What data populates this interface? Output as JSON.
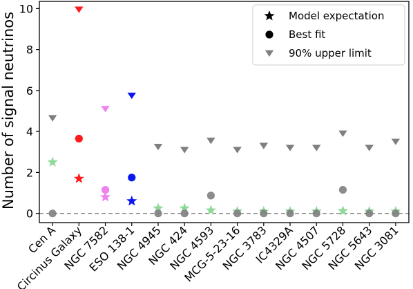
{
  "chart_data": {
    "type": "scatter",
    "title": "",
    "xlabel": "",
    "ylabel": "Number of signal neutrinos",
    "ylim": [
      -0.45,
      10.35
    ],
    "yticks": [
      0,
      2,
      4,
      6,
      8,
      10
    ],
    "grid": false,
    "legend_position": "top-right",
    "reference_line": {
      "y": 0,
      "style": "dashed",
      "color": "#888888"
    },
    "categories": [
      "Cen A",
      "Circinus Galaxy",
      "NGC 7582",
      "ESO 138-1",
      "NGC 4945",
      "NGC 424",
      "NGC 4593",
      "MCG-5-23-16",
      "NGC 3783",
      "IC4329A",
      "NGC 4507",
      "NGC 5728",
      "NGC 5643",
      "NGC 3081"
    ],
    "colors": [
      "#8fd99a",
      "#ff1a1a",
      "#ee82ee",
      "#0a18ee",
      "#8fd99a",
      "#8fd99a",
      "#8fd99a",
      "#8fd99a",
      "#8fd99a",
      "#8fd99a",
      "#8fd99a",
      "#8fd99a",
      "#8fd99a",
      "#8fd99a"
    ],
    "series": [
      {
        "name": "Model expectation",
        "marker": "star",
        "values": [
          2.5,
          1.7,
          0.8,
          0.6,
          0.25,
          0.25,
          0.15,
          0.1,
          0.1,
          0.1,
          0.1,
          0.12,
          0.1,
          0.1
        ]
      },
      {
        "name": "Best fit",
        "marker": "circle",
        "values": [
          0.0,
          3.65,
          1.15,
          1.75,
          0.0,
          0.0,
          0.87,
          0.0,
          0.0,
          0.0,
          0.0,
          1.15,
          0.0,
          0.0
        ],
        "colors": [
          "#7f7f7f",
          "#ff1a1a",
          "#ee82ee",
          "#0a18ee",
          "#7f7f7f",
          "#7f7f7f",
          "#7f7f7f",
          "#7f7f7f",
          "#7f7f7f",
          "#7f7f7f",
          "#7f7f7f",
          "#7f7f7f",
          "#7f7f7f",
          "#7f7f7f"
        ]
      },
      {
        "name": "90% upper limit",
        "marker": "triangle-down",
        "values": [
          4.65,
          9.95,
          5.1,
          5.75,
          3.25,
          3.1,
          3.55,
          3.1,
          3.3,
          3.2,
          3.2,
          3.9,
          3.2,
          3.5
        ],
        "colors": [
          "#7f7f7f",
          "#ff1a1a",
          "#ee82ee",
          "#0a18ee",
          "#7f7f7f",
          "#7f7f7f",
          "#7f7f7f",
          "#7f7f7f",
          "#7f7f7f",
          "#7f7f7f",
          "#7f7f7f",
          "#7f7f7f",
          "#7f7f7f",
          "#7f7f7f"
        ]
      }
    ],
    "legend": [
      {
        "label": "Model expectation",
        "marker": "star",
        "color": "#000000"
      },
      {
        "label": "Best fit",
        "marker": "circle",
        "color": "#000000"
      },
      {
        "label": "90% upper limit",
        "marker": "triangle-down",
        "color": "#7f7f7f"
      }
    ]
  }
}
